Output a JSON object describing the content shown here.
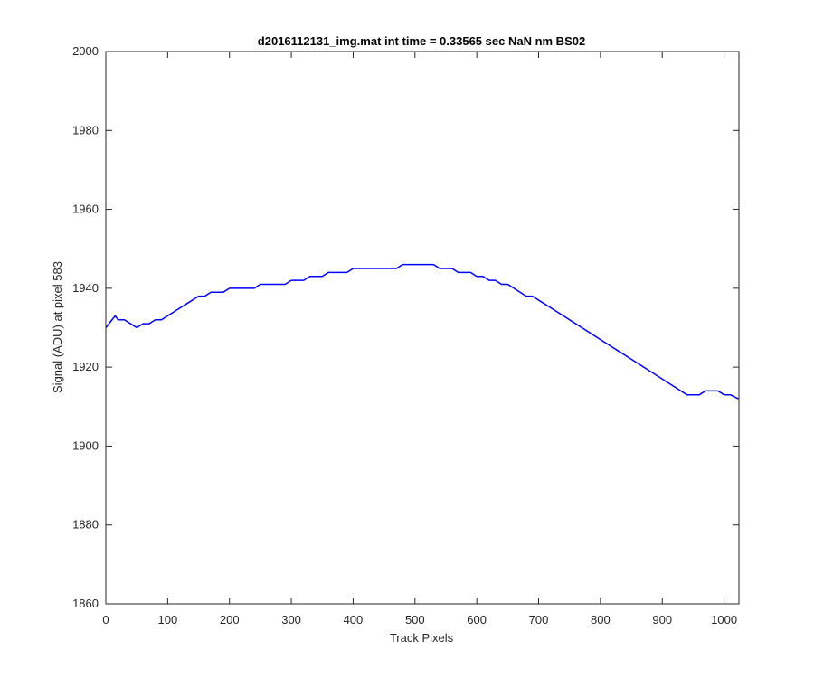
{
  "chart_data": {
    "type": "line",
    "title": "d2016112131_img.mat int time = 0.33565 sec  NaN nm BS02",
    "xlabel": "Track Pixels",
    "ylabel": "Signal (ADU) at pixel 583",
    "xlim": [
      0,
      1024
    ],
    "ylim": [
      1860,
      2000
    ],
    "xticks": [
      0,
      100,
      200,
      300,
      400,
      500,
      600,
      700,
      800,
      900,
      1000
    ],
    "yticks": [
      1860,
      1880,
      1900,
      1920,
      1940,
      1960,
      1980,
      2000
    ],
    "grid": false,
    "legend": "none",
    "line_color": "#0000ff",
    "series": [
      {
        "x": [
          0,
          5,
          10,
          15,
          20,
          30,
          40,
          50,
          60,
          70,
          80,
          90,
          100,
          110,
          120,
          130,
          140,
          150,
          160,
          170,
          180,
          190,
          200,
          210,
          220,
          230,
          240,
          250,
          260,
          270,
          280,
          290,
          300,
          310,
          320,
          330,
          340,
          350,
          360,
          370,
          380,
          390,
          400,
          410,
          420,
          430,
          440,
          450,
          460,
          470,
          480,
          490,
          500,
          510,
          520,
          530,
          540,
          550,
          560,
          570,
          580,
          590,
          600,
          610,
          620,
          630,
          640,
          650,
          660,
          670,
          680,
          690,
          700,
          710,
          720,
          730,
          740,
          750,
          760,
          770,
          780,
          790,
          800,
          810,
          820,
          830,
          840,
          850,
          860,
          870,
          880,
          890,
          900,
          910,
          920,
          930,
          940,
          950,
          960,
          970,
          980,
          990,
          1000,
          1010,
          1023
        ],
        "values": [
          1930,
          1931,
          1932,
          1933,
          1932,
          1932,
          1931,
          1930,
          1931,
          1931,
          1932,
          1932,
          1933,
          1934,
          1935,
          1936,
          1937,
          1938,
          1938,
          1939,
          1939,
          1939,
          1940,
          1940,
          1940,
          1940,
          1940,
          1941,
          1941,
          1941,
          1941,
          1941,
          1942,
          1942,
          1942,
          1943,
          1943,
          1943,
          1944,
          1944,
          1944,
          1944,
          1945,
          1945,
          1945,
          1945,
          1945,
          1945,
          1945,
          1945,
          1946,
          1946,
          1946,
          1946,
          1946,
          1946,
          1945,
          1945,
          1945,
          1944,
          1944,
          1944,
          1943,
          1943,
          1942,
          1942,
          1941,
          1941,
          1940,
          1939,
          1938,
          1938,
          1937,
          1936,
          1935,
          1934,
          1933,
          1932,
          1931,
          1930,
          1929,
          1928,
          1927,
          1926,
          1925,
          1924,
          1923,
          1922,
          1921,
          1920,
          1919,
          1918,
          1917,
          1916,
          1915,
          1914,
          1913,
          1913,
          1913,
          1914,
          1914,
          1914,
          1913,
          1913,
          1912
        ]
      }
    ]
  }
}
